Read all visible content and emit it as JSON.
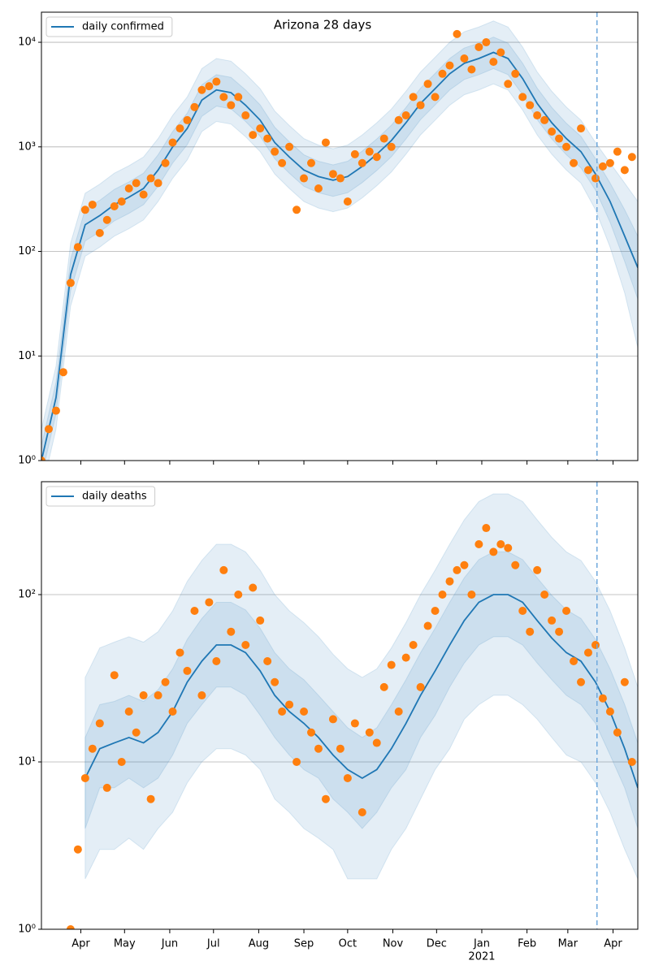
{
  "chart_data": [
    {
      "type": "line",
      "title": "Arizona 28 days",
      "log_y": true,
      "grid": true,
      "legend": "upper left",
      "xlim": [
        0,
        409
      ],
      "xticks": [
        27,
        57,
        88,
        118,
        149,
        180,
        210,
        241,
        271,
        302,
        333,
        361,
        392
      ],
      "ylim": [
        1,
        19400
      ],
      "yticks": [
        {
          "value": 1,
          "label": "10⁰"
        },
        {
          "value": 10,
          "label": "10¹"
        },
        {
          "value": 100,
          "label": "10²"
        },
        {
          "value": 1000,
          "label": "10³"
        },
        {
          "value": 10000,
          "label": "10⁴"
        }
      ],
      "vline": 381,
      "vline_color": "#6fa8dc",
      "series": [
        {
          "name": "daily confirmed",
          "color": "#1f77b4",
          "x": [
            0,
            10,
            20,
            30,
            40,
            50,
            60,
            70,
            80,
            90,
            100,
            110,
            120,
            130,
            140,
            150,
            160,
            170,
            180,
            190,
            200,
            210,
            220,
            230,
            240,
            250,
            260,
            270,
            280,
            290,
            300,
            310,
            320,
            330,
            340,
            350,
            360,
            370,
            380,
            390,
            400,
            409
          ],
          "values": [
            1,
            4,
            60,
            180,
            220,
            280,
            330,
            400,
            600,
            1000,
            1500,
            2800,
            3500,
            3300,
            2500,
            1800,
            1100,
            800,
            600,
            520,
            480,
            520,
            650,
            850,
            1150,
            1700,
            2600,
            3600,
            5000,
            6300,
            7000,
            8000,
            7000,
            4500,
            2600,
            1700,
            1200,
            900,
            550,
            300,
            140,
            70
          ],
          "bands": [
            {
              "lower": [
                0.5,
                2,
                30,
                90,
                110,
                140,
                165,
                200,
                300,
                500,
                750,
                1400,
                1750,
                1650,
                1250,
                900,
                550,
                400,
                300,
                260,
                240,
                260,
                325,
                425,
                575,
                850,
                1300,
                1800,
                2500,
                3150,
                3500,
                4000,
                3500,
                2250,
                1300,
                850,
                600,
                450,
                250,
                110,
                40,
                12
              ],
              "upper": [
                2,
                8,
                120,
                360,
                440,
                560,
                660,
                800,
                1200,
                2000,
                3000,
                5600,
                7000,
                6600,
                5000,
                3600,
                2200,
                1600,
                1200,
                1040,
                960,
                1040,
                1300,
                1700,
                2300,
                3400,
                5200,
                7200,
                10000,
                12600,
                14000,
                16000,
                14000,
                9000,
                5200,
                3400,
                2400,
                1800,
                1100,
                700,
                450,
                300
              ]
            },
            {
              "lower": [
                0.7,
                2.8,
                42,
                126,
                154,
                196,
                231,
                280,
                420,
                700,
                1050,
                1960,
                2450,
                2310,
                1750,
                1260,
                770,
                560,
                420,
                364,
                336,
                364,
                455,
                595,
                805,
                1190,
                1820,
                2520,
                3500,
                4410,
                4900,
                5600,
                4900,
                3150,
                1820,
                1190,
                840,
                630,
                385,
                190,
                80,
                35
              ],
              "upper": [
                1.4,
                5.6,
                84,
                252,
                308,
                392,
                462,
                560,
                840,
                1400,
                2100,
                3920,
                4900,
                4620,
                3500,
                2520,
                1540,
                1120,
                840,
                728,
                672,
                728,
                910,
                1190,
                1610,
                2380,
                3640,
                5040,
                7000,
                8820,
                9800,
                11200,
                9800,
                6300,
                3640,
                2380,
                1680,
                1260,
                770,
                450,
                250,
                140
              ]
            }
          ]
        }
      ],
      "scatter": {
        "color": "#ff7f0e",
        "x": [
          0,
          5,
          10,
          15,
          20,
          25,
          30,
          35,
          40,
          45,
          50,
          55,
          60,
          65,
          70,
          75,
          80,
          85,
          90,
          95,
          100,
          105,
          110,
          115,
          120,
          125,
          130,
          135,
          140,
          145,
          150,
          155,
          160,
          165,
          170,
          175,
          180,
          185,
          190,
          195,
          200,
          205,
          210,
          215,
          220,
          225,
          230,
          235,
          240,
          245,
          250,
          255,
          260,
          265,
          270,
          275,
          280,
          285,
          290,
          295,
          300,
          305,
          310,
          315,
          320,
          325,
          330,
          335,
          340,
          345,
          350,
          355,
          360,
          365,
          370,
          375,
          380,
          385,
          390,
          395,
          400,
          405
        ],
        "values": [
          1,
          2,
          3,
          7,
          50,
          110,
          250,
          280,
          150,
          200,
          270,
          300,
          400,
          450,
          350,
          500,
          450,
          700,
          1100,
          1500,
          1800,
          2400,
          3500,
          3800,
          4200,
          3000,
          2500,
          3000,
          2000,
          1300,
          1500,
          1200,
          900,
          700,
          1000,
          250,
          500,
          700,
          400,
          1100,
          550,
          500,
          300,
          850,
          700,
          900,
          800,
          1200,
          1000,
          1800,
          2000,
          3000,
          2500,
          4000,
          3000,
          5000,
          6000,
          12000,
          7000,
          5500,
          9000,
          10000,
          6500,
          8000,
          4000,
          5000,
          3000,
          2500,
          2000,
          1800,
          1400,
          1200,
          1000,
          700,
          1500,
          600,
          500,
          650,
          700,
          900,
          600,
          800
        ]
      }
    },
    {
      "type": "line",
      "log_y": true,
      "grid": true,
      "legend": "upper left",
      "xlim": [
        0,
        409
      ],
      "xticks": [
        {
          "value": 27,
          "label": "Apr"
        },
        {
          "value": 57,
          "label": "May"
        },
        {
          "value": 88,
          "label": "Jun"
        },
        {
          "value": 118,
          "label": "Jul"
        },
        {
          "value": 149,
          "label": "Aug"
        },
        {
          "value": 180,
          "label": "Sep"
        },
        {
          "value": 210,
          "label": "Oct"
        },
        {
          "value": 241,
          "label": "Nov"
        },
        {
          "value": 271,
          "label": "Dec"
        },
        {
          "value": 302,
          "label": "Jan"
        },
        {
          "value": 333,
          "label": "Feb"
        },
        {
          "value": 361,
          "label": "Mar"
        },
        {
          "value": 392,
          "label": "Apr"
        }
      ],
      "year_label": "2021",
      "ylim": [
        1,
        473
      ],
      "yticks": [
        {
          "value": 1,
          "label": "10⁰"
        },
        {
          "value": 10,
          "label": "10¹"
        },
        {
          "value": 100,
          "label": "10²"
        }
      ],
      "vline": 381,
      "vline_color": "#6fa8dc",
      "series": [
        {
          "name": "daily deaths",
          "color": "#1f77b4",
          "x": [
            0,
            10,
            20,
            30,
            40,
            50,
            60,
            70,
            80,
            90,
            100,
            110,
            120,
            130,
            140,
            150,
            160,
            170,
            180,
            190,
            200,
            210,
            220,
            230,
            240,
            250,
            260,
            270,
            280,
            290,
            300,
            310,
            320,
            330,
            340,
            350,
            360,
            370,
            380,
            390,
            400,
            409
          ],
          "values": [
            null,
            null,
            null,
            8,
            12,
            13,
            14,
            13,
            15,
            20,
            30,
            40,
            50,
            50,
            45,
            35,
            25,
            20,
            17,
            14,
            11,
            9,
            8,
            9,
            12,
            17,
            25,
            35,
            50,
            70,
            90,
            100,
            100,
            90,
            70,
            55,
            45,
            40,
            30,
            20,
            12,
            7
          ],
          "bands": [
            {
              "lower": [
                null,
                null,
                null,
                2,
                3,
                3,
                3.5,
                3,
                4,
                5,
                7.5,
                10,
                12,
                12,
                11,
                9,
                6,
                5,
                4,
                3.5,
                3,
                2,
                2,
                2,
                3,
                4,
                6,
                9,
                12,
                18,
                22,
                25,
                25,
                22,
                18,
                14,
                11,
                10,
                7.5,
                5,
                3,
                2
              ],
              "upper": [
                null,
                null,
                null,
                32,
                48,
                52,
                56,
                52,
                60,
                80,
                120,
                160,
                200,
                200,
                180,
                140,
                100,
                80,
                68,
                56,
                44,
                36,
                32,
                36,
                48,
                68,
                100,
                140,
                200,
                280,
                360,
                400,
                400,
                360,
                280,
                220,
                180,
                160,
                120,
                80,
                48,
                28
              ]
            },
            {
              "lower": [
                null,
                null,
                null,
                4,
                7,
                7,
                8,
                7,
                8,
                11,
                17,
                22,
                28,
                28,
                25,
                19,
                14,
                11,
                9,
                8,
                6,
                5,
                4,
                5,
                7,
                9,
                14,
                19,
                28,
                39,
                50,
                56,
                56,
                50,
                39,
                31,
                25,
                22,
                17,
                11,
                7,
                4
              ],
              "upper": [
                null,
                null,
                null,
                14,
                22,
                23,
                25,
                23,
                27,
                36,
                54,
                72,
                90,
                90,
                81,
                63,
                45,
                36,
                31,
                25,
                20,
                16,
                14,
                16,
                22,
                31,
                45,
                63,
                90,
                126,
                162,
                180,
                180,
                162,
                126,
                99,
                81,
                72,
                54,
                36,
                22,
                13
              ]
            }
          ]
        }
      ],
      "scatter": {
        "color": "#ff7f0e",
        "x": [
          20,
          25,
          30,
          35,
          40,
          45,
          50,
          55,
          60,
          65,
          70,
          75,
          80,
          85,
          90,
          95,
          100,
          105,
          110,
          115,
          120,
          125,
          130,
          135,
          140,
          145,
          150,
          155,
          160,
          165,
          170,
          175,
          180,
          185,
          190,
          195,
          200,
          205,
          210,
          215,
          220,
          225,
          230,
          235,
          240,
          245,
          250,
          255,
          260,
          265,
          270,
          275,
          280,
          285,
          290,
          295,
          300,
          305,
          310,
          315,
          320,
          325,
          330,
          335,
          340,
          345,
          350,
          355,
          360,
          365,
          370,
          375,
          380,
          385,
          390,
          395,
          400,
          405
        ],
        "values": [
          1,
          3,
          8,
          12,
          17,
          7,
          33,
          10,
          20,
          15,
          25,
          6,
          25,
          30,
          20,
          45,
          35,
          80,
          25,
          90,
          40,
          140,
          60,
          100,
          50,
          110,
          70,
          40,
          30,
          20,
          22,
          10,
          20,
          15,
          12,
          6,
          18,
          12,
          8,
          17,
          5,
          15,
          13,
          28,
          38,
          20,
          42,
          50,
          28,
          65,
          80,
          100,
          120,
          140,
          150,
          100,
          200,
          250,
          180,
          200,
          190,
          150,
          80,
          60,
          140,
          100,
          70,
          60,
          80,
          40,
          30,
          45,
          50,
          24,
          20,
          15,
          30,
          10
        ]
      }
    }
  ]
}
